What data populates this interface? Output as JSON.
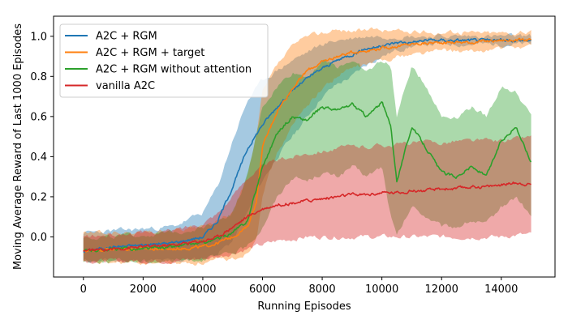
{
  "chart_data": {
    "type": "line",
    "title": "",
    "xlabel": "Running Episodes",
    "ylabel": "Moving Average Reward of Last 1000 Episodes",
    "xlim": [
      -1000,
      15800
    ],
    "ylim": [
      -0.2,
      1.1
    ],
    "xticks": [
      0,
      2000,
      4000,
      6000,
      8000,
      10000,
      12000,
      14000
    ],
    "yticks": [
      0.0,
      0.2,
      0.4,
      0.6,
      0.8,
      1.0
    ],
    "xtick_labels": [
      "0",
      "2000",
      "4000",
      "6000",
      "8000",
      "10000",
      "12000",
      "14000"
    ],
    "ytick_labels": [
      "0.0",
      "0.2",
      "0.4",
      "0.6",
      "0.8",
      "1.0"
    ],
    "grid": false,
    "legend_position": "top-left",
    "series": [
      {
        "name": "A2C + RGM",
        "color": "#1f77b4",
        "x": [
          0,
          1000,
          2000,
          3000,
          4000,
          4500,
          5000,
          5500,
          6000,
          6500,
          7000,
          7500,
          8000,
          8500,
          9000,
          9500,
          10000,
          10500,
          11000,
          11500,
          12000,
          13000,
          14000,
          15000
        ],
        "values": [
          -0.07,
          -0.05,
          -0.04,
          -0.03,
          0.0,
          0.08,
          0.25,
          0.44,
          0.56,
          0.65,
          0.73,
          0.79,
          0.84,
          0.88,
          0.91,
          0.94,
          0.95,
          0.97,
          0.97,
          0.98,
          0.98,
          0.98,
          0.98,
          0.98
        ],
        "band_low": [
          -0.12,
          -0.12,
          -0.12,
          -0.12,
          -0.11,
          -0.08,
          -0.02,
          0.12,
          0.28,
          0.4,
          0.5,
          0.6,
          0.7,
          0.76,
          0.8,
          0.86,
          0.9,
          0.93,
          0.95,
          0.96,
          0.96,
          0.96,
          0.96,
          0.96
        ],
        "band_high": [
          0.02,
          0.03,
          0.04,
          0.05,
          0.12,
          0.25,
          0.48,
          0.68,
          0.78,
          0.83,
          0.88,
          0.92,
          0.96,
          0.98,
          0.99,
          1.0,
          1.0,
          1.0,
          1.0,
          1.0,
          1.0,
          1.0,
          1.0,
          1.0
        ]
      },
      {
        "name": "A2C + RGM + target",
        "color": "#ff7f0e",
        "x": [
          0,
          1000,
          2000,
          3000,
          4000,
          4500,
          5000,
          5500,
          5800,
          6000,
          6500,
          7000,
          7500,
          8000,
          8500,
          9000,
          9500,
          10000,
          10500,
          11000,
          12000,
          13000,
          14000,
          15000
        ],
        "values": [
          -0.07,
          -0.06,
          -0.06,
          -0.06,
          -0.05,
          -0.03,
          0.0,
          0.05,
          0.18,
          0.45,
          0.63,
          0.74,
          0.83,
          0.87,
          0.9,
          0.92,
          0.93,
          0.94,
          0.95,
          0.96,
          0.97,
          0.97,
          0.98,
          0.98
        ],
        "band_low": [
          -0.13,
          -0.13,
          -0.13,
          -0.13,
          -0.13,
          -0.12,
          -0.11,
          -0.08,
          0.0,
          0.22,
          0.42,
          0.55,
          0.66,
          0.74,
          0.8,
          0.84,
          0.86,
          0.88,
          0.9,
          0.91,
          0.93,
          0.92,
          0.94,
          0.95
        ],
        "band_high": [
          0.02,
          0.02,
          0.02,
          0.03,
          0.05,
          0.08,
          0.12,
          0.3,
          0.5,
          0.72,
          0.86,
          0.95,
          1.0,
          1.02,
          1.03,
          1.03,
          1.03,
          1.03,
          1.03,
          1.02,
          1.02,
          1.02,
          1.02,
          1.02
        ]
      },
      {
        "name": "A2C + RGM without attention",
        "color": "#2ca02c",
        "x": [
          0,
          1000,
          2000,
          3000,
          4000,
          4500,
          5000,
          5500,
          6000,
          6500,
          7000,
          7500,
          8000,
          8500,
          9000,
          9500,
          10000,
          10300,
          10500,
          11000,
          11500,
          12000,
          12500,
          13000,
          13500,
          14000,
          14500,
          15000
        ],
        "values": [
          -0.07,
          -0.06,
          -0.06,
          -0.05,
          -0.03,
          -0.01,
          0.02,
          0.08,
          0.35,
          0.52,
          0.6,
          0.58,
          0.65,
          0.63,
          0.66,
          0.6,
          0.67,
          0.55,
          0.28,
          0.55,
          0.44,
          0.32,
          0.3,
          0.35,
          0.3,
          0.48,
          0.55,
          0.37
        ],
        "band_low": [
          -0.12,
          -0.12,
          -0.12,
          -0.12,
          -0.11,
          -0.1,
          -0.08,
          -0.05,
          0.05,
          0.2,
          0.3,
          0.28,
          0.32,
          0.3,
          0.35,
          0.3,
          0.35,
          0.1,
          0.0,
          0.15,
          0.1,
          0.05,
          0.05,
          0.08,
          0.06,
          0.15,
          0.2,
          0.1
        ],
        "band_high": [
          0.0,
          0.0,
          0.01,
          0.02,
          0.05,
          0.08,
          0.12,
          0.3,
          0.65,
          0.75,
          0.82,
          0.8,
          0.88,
          0.85,
          0.88,
          0.82,
          0.88,
          0.85,
          0.6,
          0.85,
          0.75,
          0.6,
          0.6,
          0.65,
          0.6,
          0.75,
          0.72,
          0.6
        ]
      },
      {
        "name": "vanilla A2C",
        "color": "#d62728",
        "x": [
          0,
          1000,
          2000,
          3000,
          4000,
          4500,
          5000,
          5500,
          6000,
          6500,
          7000,
          7500,
          8000,
          8500,
          9000,
          9500,
          10000,
          10500,
          11000,
          11500,
          12000,
          12500,
          13000,
          13500,
          14000,
          14500,
          15000
        ],
        "values": [
          -0.07,
          -0.06,
          -0.05,
          -0.04,
          -0.02,
          0.0,
          0.05,
          0.1,
          0.14,
          0.16,
          0.17,
          0.18,
          0.19,
          0.2,
          0.21,
          0.21,
          0.22,
          0.22,
          0.23,
          0.23,
          0.24,
          0.24,
          0.25,
          0.25,
          0.26,
          0.27,
          0.26
        ],
        "band_low": [
          -0.12,
          -0.12,
          -0.12,
          -0.12,
          -0.11,
          -0.1,
          -0.08,
          -0.06,
          -0.04,
          -0.02,
          -0.01,
          0.0,
          0.0,
          0.0,
          0.0,
          0.0,
          0.0,
          0.0,
          0.0,
          0.0,
          0.0,
          0.0,
          0.0,
          0.0,
          0.0,
          0.01,
          0.01
        ],
        "band_high": [
          0.0,
          0.01,
          0.02,
          0.03,
          0.07,
          0.12,
          0.2,
          0.3,
          0.35,
          0.38,
          0.4,
          0.42,
          0.43,
          0.44,
          0.45,
          0.45,
          0.46,
          0.46,
          0.47,
          0.47,
          0.47,
          0.48,
          0.48,
          0.48,
          0.48,
          0.49,
          0.5
        ]
      }
    ]
  }
}
